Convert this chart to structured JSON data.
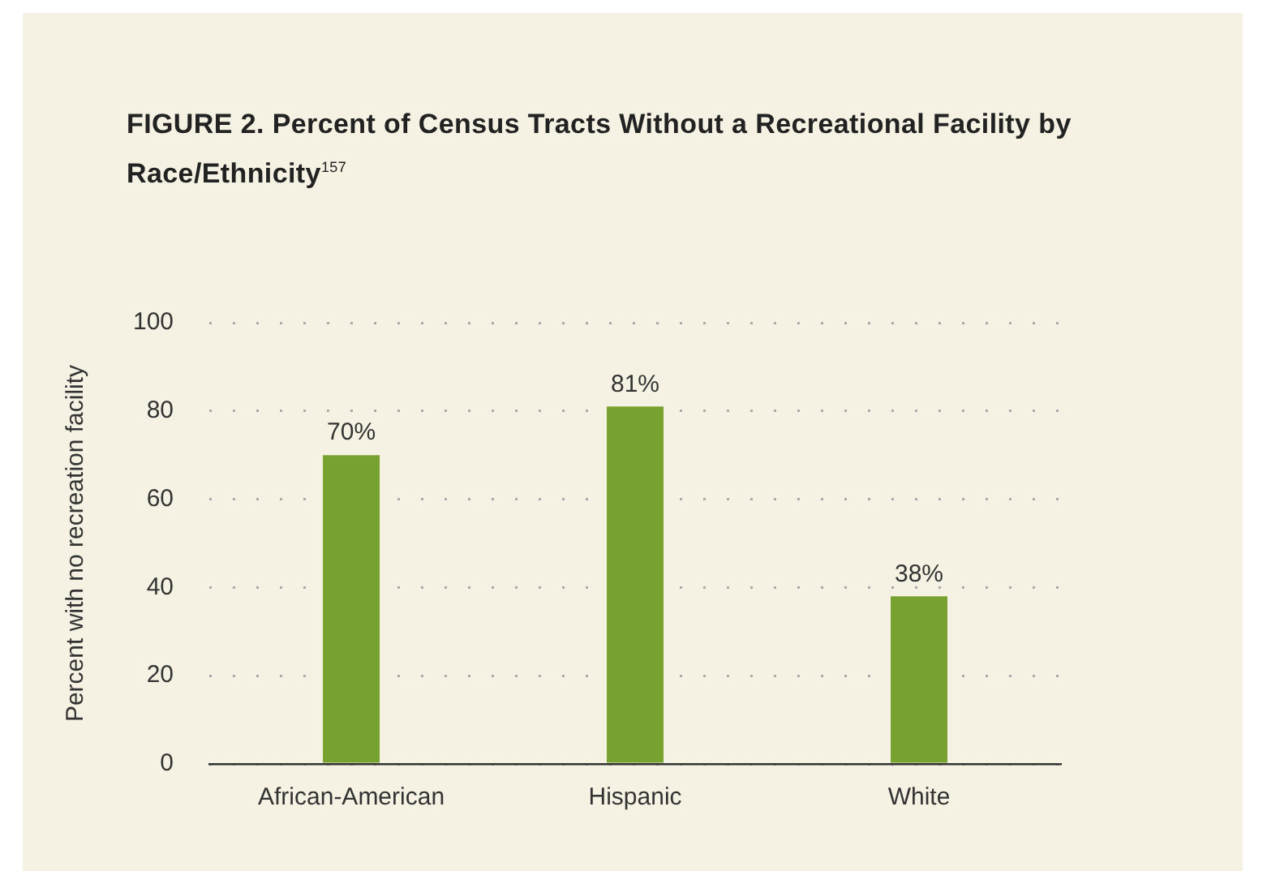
{
  "chart_data": {
    "type": "bar",
    "title": "FIGURE 2. Percent of Census Tracts Without a Recreational Facility by Race/Ethnicity$^{157}$",
    "ylabel": "Percent with no recreation facility",
    "categories": [
      "African-American",
      "Hispanic",
      "White"
    ],
    "values": [
      70,
      81,
      38
    ],
    "color": "#78a22f",
    "value_labels": [
      "70%",
      "81%",
      "38%"
    ],
    "ylim": [
      0,
      100
    ],
    "yticks": [
      0,
      20,
      40,
      60,
      80,
      100
    ],
    "grid": "y"
  }
}
